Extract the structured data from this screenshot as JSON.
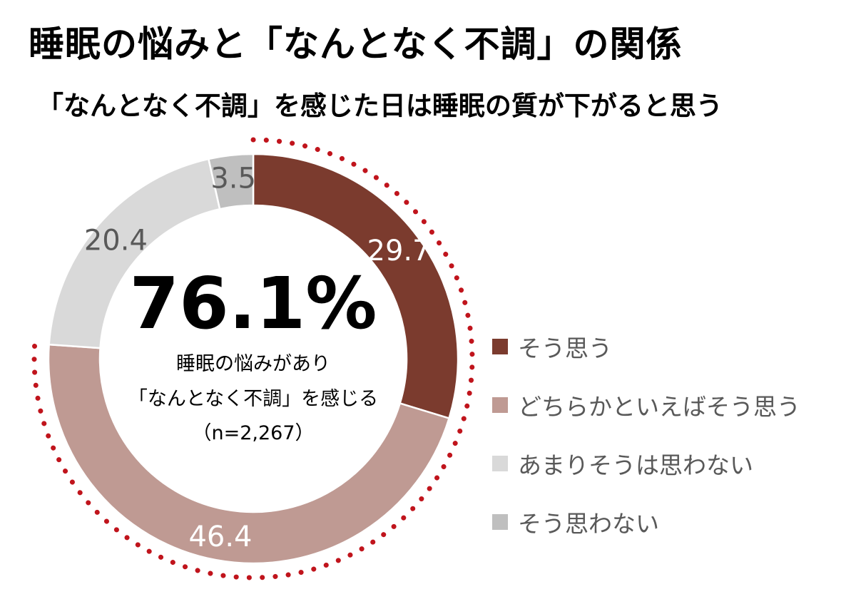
{
  "title": "睡眠の悩みと「なんとなく不調」の関係",
  "subtitle": "「なんとなく不調」を感じた日は睡眠の質が下がると思う",
  "center": {
    "big": "76.1%",
    "line1": "睡眠の悩みがあり",
    "line2": "「なんとなく不調」を感じる",
    "line3": "（n=2,267）"
  },
  "chart_data": {
    "type": "pie",
    "donut": true,
    "categories": [
      "そう思う",
      "どちらかといえばそう思う",
      "あまりそうは思わない",
      "そう思わない"
    ],
    "values": [
      29.7,
      46.4,
      20.4,
      3.5
    ],
    "labels": [
      "29.7",
      "46.4",
      "20.4",
      "3.5"
    ],
    "colors": [
      "#7b3b2e",
      "#bf9a93",
      "#d9d9d9",
      "#bfbfbf"
    ],
    "label_colors": [
      "#ffffff",
      "#ffffff",
      "#595959",
      "#595959"
    ],
    "highlight": {
      "categories": [
        "そう思う",
        "どちらかといえばそう思う"
      ],
      "style": "dotted-outline",
      "color": "#c0141c"
    },
    "legend_position": "right"
  }
}
